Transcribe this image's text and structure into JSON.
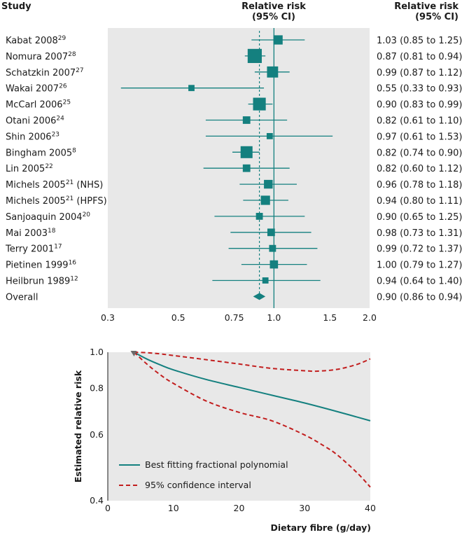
{
  "colors": {
    "teal": "#14807f",
    "red": "#c21e1e",
    "panel": "#e8e8e8"
  },
  "chart_data": [
    {
      "type": "forest",
      "headers": {
        "study": "Study",
        "rr_line1": "Relative risk",
        "rr_line2": "(95% CI)"
      },
      "x_scale": "log",
      "xlim": [
        0.3,
        2.0
      ],
      "ticks": [
        {
          "value": 0.3,
          "label": "0.3"
        },
        {
          "value": 0.5,
          "label": "0.5"
        },
        {
          "value": 0.75,
          "label": "0.75"
        },
        {
          "value": 1.0,
          "label": "1.0"
        },
        {
          "value": 1.5,
          "label": "1.5"
        },
        {
          "value": 2.0,
          "label": "2.0"
        }
      ],
      "reference_line": 1.0,
      "studies": [
        {
          "name": "Kabat 2008",
          "ref": "29",
          "rr": 1.03,
          "lo": 0.85,
          "hi": 1.25,
          "ci_text": "1.03 (0.85 to 1.25)",
          "weight": 9
        },
        {
          "name": "Nomura 2007",
          "ref": "28",
          "rr": 0.87,
          "lo": 0.81,
          "hi": 0.94,
          "ci_text": "0.87 (0.81 to 0.94)",
          "weight": 21
        },
        {
          "name": "Schatzkin 2007",
          "ref": "27",
          "rr": 0.99,
          "lo": 0.87,
          "hi": 1.12,
          "ci_text": "0.99 (0.87 to 1.12)",
          "weight": 13
        },
        {
          "name": "Wakai 2007",
          "ref": "26",
          "rr": 0.55,
          "lo": 0.33,
          "hi": 0.93,
          "ci_text": "0.55 (0.33 to 0.93)",
          "weight": 4
        },
        {
          "name": "McCarl 2006",
          "ref": "25",
          "rr": 0.9,
          "lo": 0.83,
          "hi": 0.99,
          "ci_text": "0.90 (0.83 to 0.99)",
          "weight": 17
        },
        {
          "name": "Otani 2006",
          "ref": "24",
          "rr": 0.82,
          "lo": 0.61,
          "hi": 1.1,
          "ci_text": "0.82 (0.61 to 1.10)",
          "weight": 6
        },
        {
          "name": "Shin 2006",
          "ref": "23",
          "rr": 0.97,
          "lo": 0.61,
          "hi": 1.53,
          "ci_text": "0.97 (0.61 to 1.53)",
          "weight": 4
        },
        {
          "name": "Bingham 2005",
          "ref": "8",
          "rr": 0.82,
          "lo": 0.74,
          "hi": 0.9,
          "ci_text": "0.82 (0.74 to 0.90)",
          "weight": 15
        },
        {
          "name": "Lin 2005",
          "ref": "22",
          "rr": 0.82,
          "lo": 0.6,
          "hi": 1.12,
          "ci_text": "0.82 (0.60 to 1.12)",
          "weight": 6
        },
        {
          "name": "Michels 2005",
          "ref": "21",
          "suffix": " (NHS)",
          "rr": 0.96,
          "lo": 0.78,
          "hi": 1.18,
          "ci_text": "0.96 (0.78 to 1.18)",
          "weight": 8
        },
        {
          "name": "Michels 2005",
          "ref": "21",
          "suffix": " (HPFS)",
          "rr": 0.94,
          "lo": 0.8,
          "hi": 1.11,
          "ci_text": "0.94 (0.80 to 1.11)",
          "weight": 9
        },
        {
          "name": "Sanjoaquin 2004",
          "ref": "20",
          "rr": 0.9,
          "lo": 0.65,
          "hi": 1.25,
          "ci_text": "0.90 (0.65 to 1.25)",
          "weight": 5
        },
        {
          "name": "Mai 2003",
          "ref": "18",
          "rr": 0.98,
          "lo": 0.73,
          "hi": 1.31,
          "ci_text": "0.98 (0.73 to 1.31)",
          "weight": 6
        },
        {
          "name": "Terry 2001",
          "ref": "17",
          "rr": 0.99,
          "lo": 0.72,
          "hi": 1.37,
          "ci_text": "0.99 (0.72 to 1.37)",
          "weight": 5
        },
        {
          "name": "Pietinen 1999",
          "ref": "16",
          "rr": 1.0,
          "lo": 0.79,
          "hi": 1.27,
          "ci_text": "1.00 (0.79 to 1.27)",
          "weight": 7
        },
        {
          "name": "Heilbrun 1989",
          "ref": "12",
          "rr": 0.94,
          "lo": 0.64,
          "hi": 1.4,
          "ci_text": "0.94 (0.64 to 1.40)",
          "weight": 4
        }
      ],
      "overall": {
        "name": "Overall",
        "rr": 0.9,
        "lo": 0.86,
        "hi": 0.94,
        "ci_text": "0.90 (0.86 to 0.94)"
      }
    },
    {
      "type": "line",
      "xlabel": "Dietary fibre (g/day)",
      "ylabel": "Estimated relative risk",
      "xlim": [
        0,
        40
      ],
      "ylim": [
        0.4,
        1.0
      ],
      "y_scale": "log",
      "xticks": [
        0,
        10,
        20,
        30,
        40
      ],
      "yticks": [
        {
          "value": 0.4,
          "label": "0.4"
        },
        {
          "value": 0.6,
          "label": "0.6"
        },
        {
          "value": 0.8,
          "label": "0.8"
        },
        {
          "value": 1.0,
          "label": "1.0"
        }
      ],
      "legend": "bottom-left",
      "series": [
        {
          "name": "Best fitting fractional polynomial",
          "style": "solid",
          "x": [
            4,
            6,
            8,
            10,
            15,
            20,
            25,
            30,
            35,
            40
          ],
          "y": [
            1.0,
            0.958,
            0.925,
            0.897,
            0.845,
            0.805,
            0.767,
            0.731,
            0.693,
            0.655
          ]
        },
        {
          "name": "95% confidence interval",
          "style": "dashed",
          "x": [
            4,
            6,
            8,
            10,
            15,
            20,
            25,
            30,
            32,
            35,
            38,
            40
          ],
          "y": [
            1.0,
            0.997,
            0.99,
            0.98,
            0.955,
            0.93,
            0.905,
            0.892,
            0.89,
            0.9,
            0.928,
            0.96
          ]
        },
        {
          "name": "",
          "style": "dashed",
          "x": [
            4,
            6,
            8,
            10,
            15,
            20,
            25,
            30,
            33,
            35,
            38,
            40
          ],
          "y": [
            1.0,
            0.928,
            0.87,
            0.825,
            0.74,
            0.69,
            0.655,
            0.6,
            0.56,
            0.53,
            0.475,
            0.435
          ]
        }
      ]
    }
  ]
}
